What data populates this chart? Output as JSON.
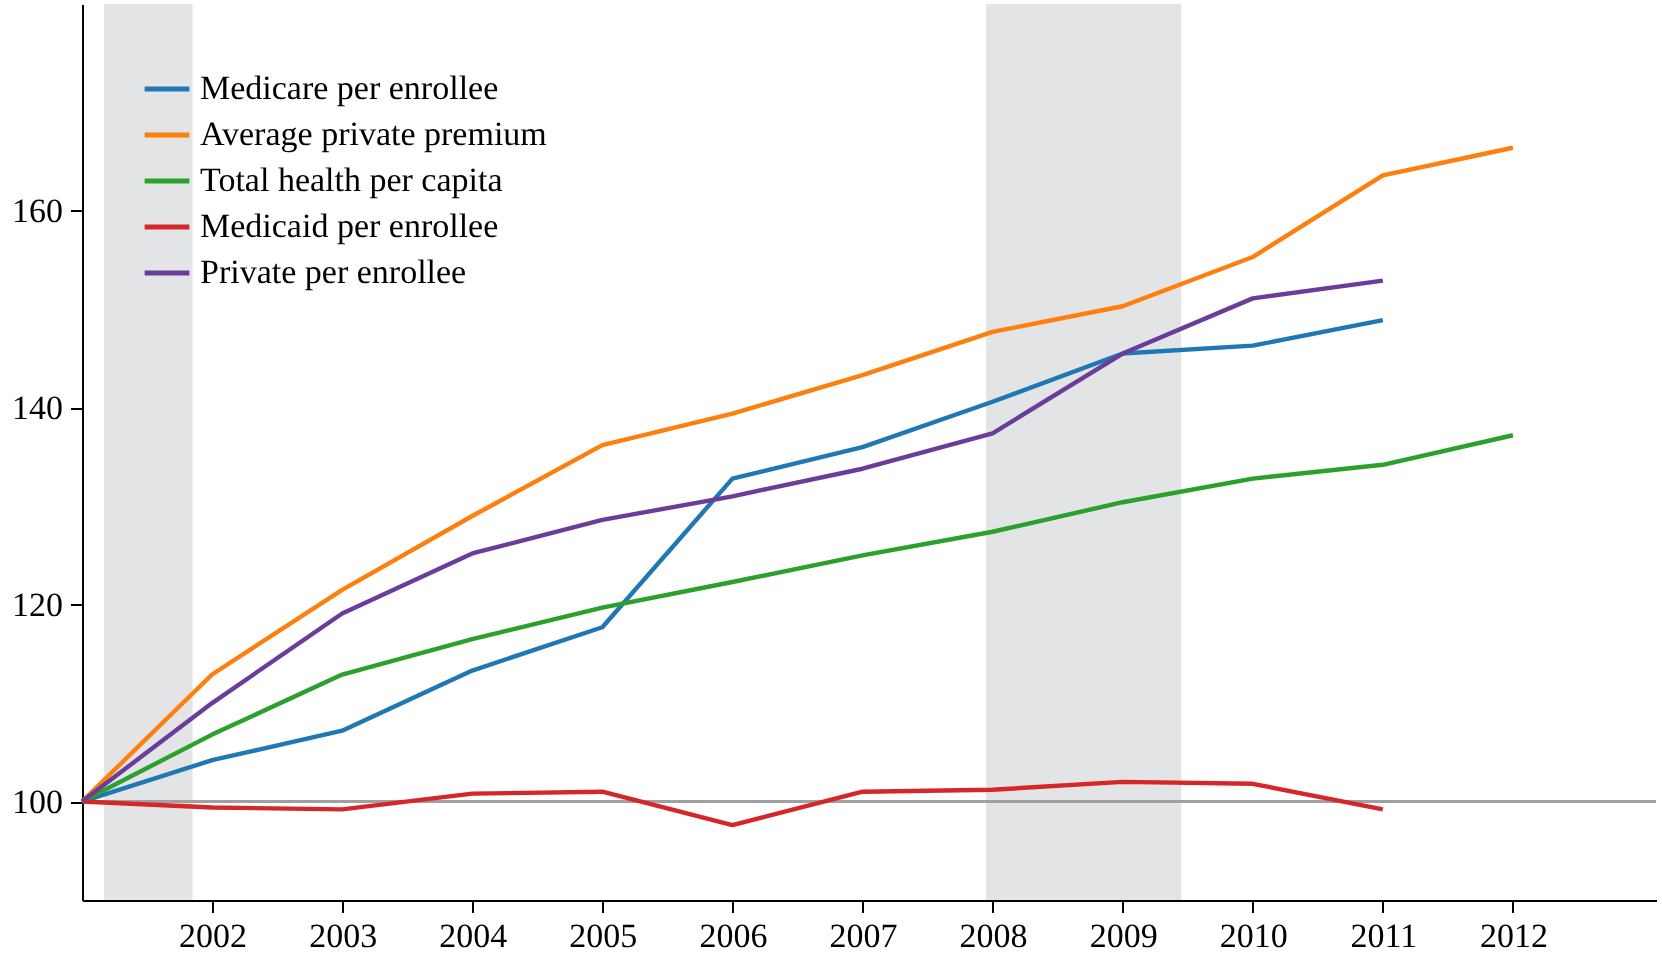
{
  "chart_data": {
    "type": "line",
    "x": [
      2001,
      2002,
      2003,
      2004,
      2005,
      2006,
      2007,
      2008,
      2009,
      2010,
      2011,
      2012
    ],
    "xlim": [
      2001,
      2013.1
    ],
    "xticks": [
      2002,
      2003,
      2004,
      2005,
      2006,
      2007,
      2008,
      2009,
      2010,
      2011,
      2012
    ],
    "ylim": [
      90,
      181
    ],
    "yticks": [
      100,
      120,
      140,
      160
    ],
    "grid": false,
    "legend": "top left",
    "marker": "none",
    "line_style": "solid",
    "series": [
      {
        "name": "Medicare per enrollee",
        "color": "#1f77b4",
        "values": [
          100,
          104.2,
          107.2,
          113.3,
          117.7,
          132.8,
          136,
          140.6,
          145.5,
          146.3,
          148.9,
          null
        ]
      },
      {
        "name": "Average private premium",
        "color": "#ff7f0e",
        "values": [
          100,
          112.9,
          121.5,
          129,
          136.2,
          139.4,
          143.3,
          147.7,
          150.3,
          155.3,
          163.6,
          166.4
        ]
      },
      {
        "name": "Total health per capita",
        "color": "#2ca02c",
        "values": [
          100,
          106.8,
          112.9,
          116.5,
          119.7,
          122.3,
          125,
          127.4,
          130.4,
          132.8,
          134.2,
          137.2
        ]
      },
      {
        "name": "Medicaid per enrollee",
        "color": "#d62728",
        "values": [
          100,
          99.4,
          99.2,
          100.8,
          101,
          97.6,
          101,
          101.2,
          102,
          101.8,
          99.2,
          null
        ]
      },
      {
        "name": "Private per enrollee",
        "color": "#6a3d9a",
        "values": [
          100,
          110,
          119.1,
          125.2,
          128.6,
          131,
          133.8,
          137.4,
          145.5,
          151.1,
          152.9,
          null
        ]
      }
    ],
    "ref_lines": [
      {
        "axis": "y",
        "value": 100,
        "color": "#a0a0a0"
      }
    ],
    "bands": [
      {
        "axis": "x",
        "from": 2001.17,
        "to": 2001.85,
        "color": "#e3e4e6"
      },
      {
        "axis": "x",
        "from": 2007.95,
        "to": 2009.45,
        "color": "#e3e4e6"
      }
    ]
  }
}
